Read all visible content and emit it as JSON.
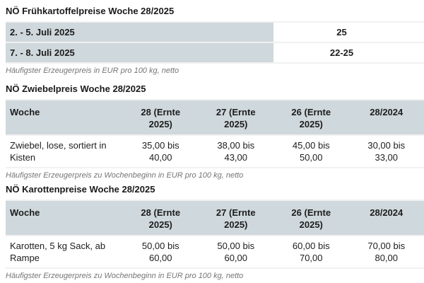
{
  "colors": {
    "table_header_bg": "#cfd8dc",
    "row_border": "#f1f1f1",
    "text": "#1d1d1d",
    "footnote_text": "#757575"
  },
  "sections": [
    {
      "title": "NÖ Frühkartoffelpreise Woche 28/2025",
      "table": {
        "rows": [
          {
            "label": "2. - 5. Juli 2025",
            "value": "25"
          },
          {
            "label": "7. - 8. Juli 2025",
            "value": "22-25"
          }
        ]
      },
      "footnote": "Häufigster Erzeugerpreis in EUR pro 100 kg, netto"
    },
    {
      "title": "NÖ Zwiebelpreis Woche 28/2025",
      "table": {
        "headers": [
          "Woche",
          "28 (Ernte\n2025)",
          "27 (Ernte\n2025)",
          "26 (Ernte\n2025)",
          "28/2024"
        ],
        "rows": [
          {
            "label": "Zwiebel, lose, sortiert in\nKisten",
            "values": [
              "35,00 bis\n40,00",
              "38,00 bis\n43,00",
              "45,00 bis\n50,00",
              "30,00 bis\n33,00"
            ]
          }
        ]
      },
      "footnote": "Häufigster Erzeugerpreis zu Wochenbeginn in EUR pro 100 kg, netto"
    },
    {
      "title": "NÖ Karottenpreise Woche 28/2025",
      "table": {
        "headers": [
          "Woche",
          "28 (Ernte\n2025)",
          "27 (Ernte\n2025)",
          "26 (Ernte\n2025)",
          "28/2024"
        ],
        "rows": [
          {
            "label": "Karotten, 5 kg Sack, ab\nRampe",
            "values": [
              "50,00 bis\n60,00",
              "50,00 bis\n60,00",
              "60,00 bis\n70,00",
              "70,00 bis\n80,00"
            ]
          }
        ]
      },
      "footnote": "Häufigster Erzeugerpreis zu Wochenbeginn in EUR pro 100 kg, netto"
    }
  ]
}
